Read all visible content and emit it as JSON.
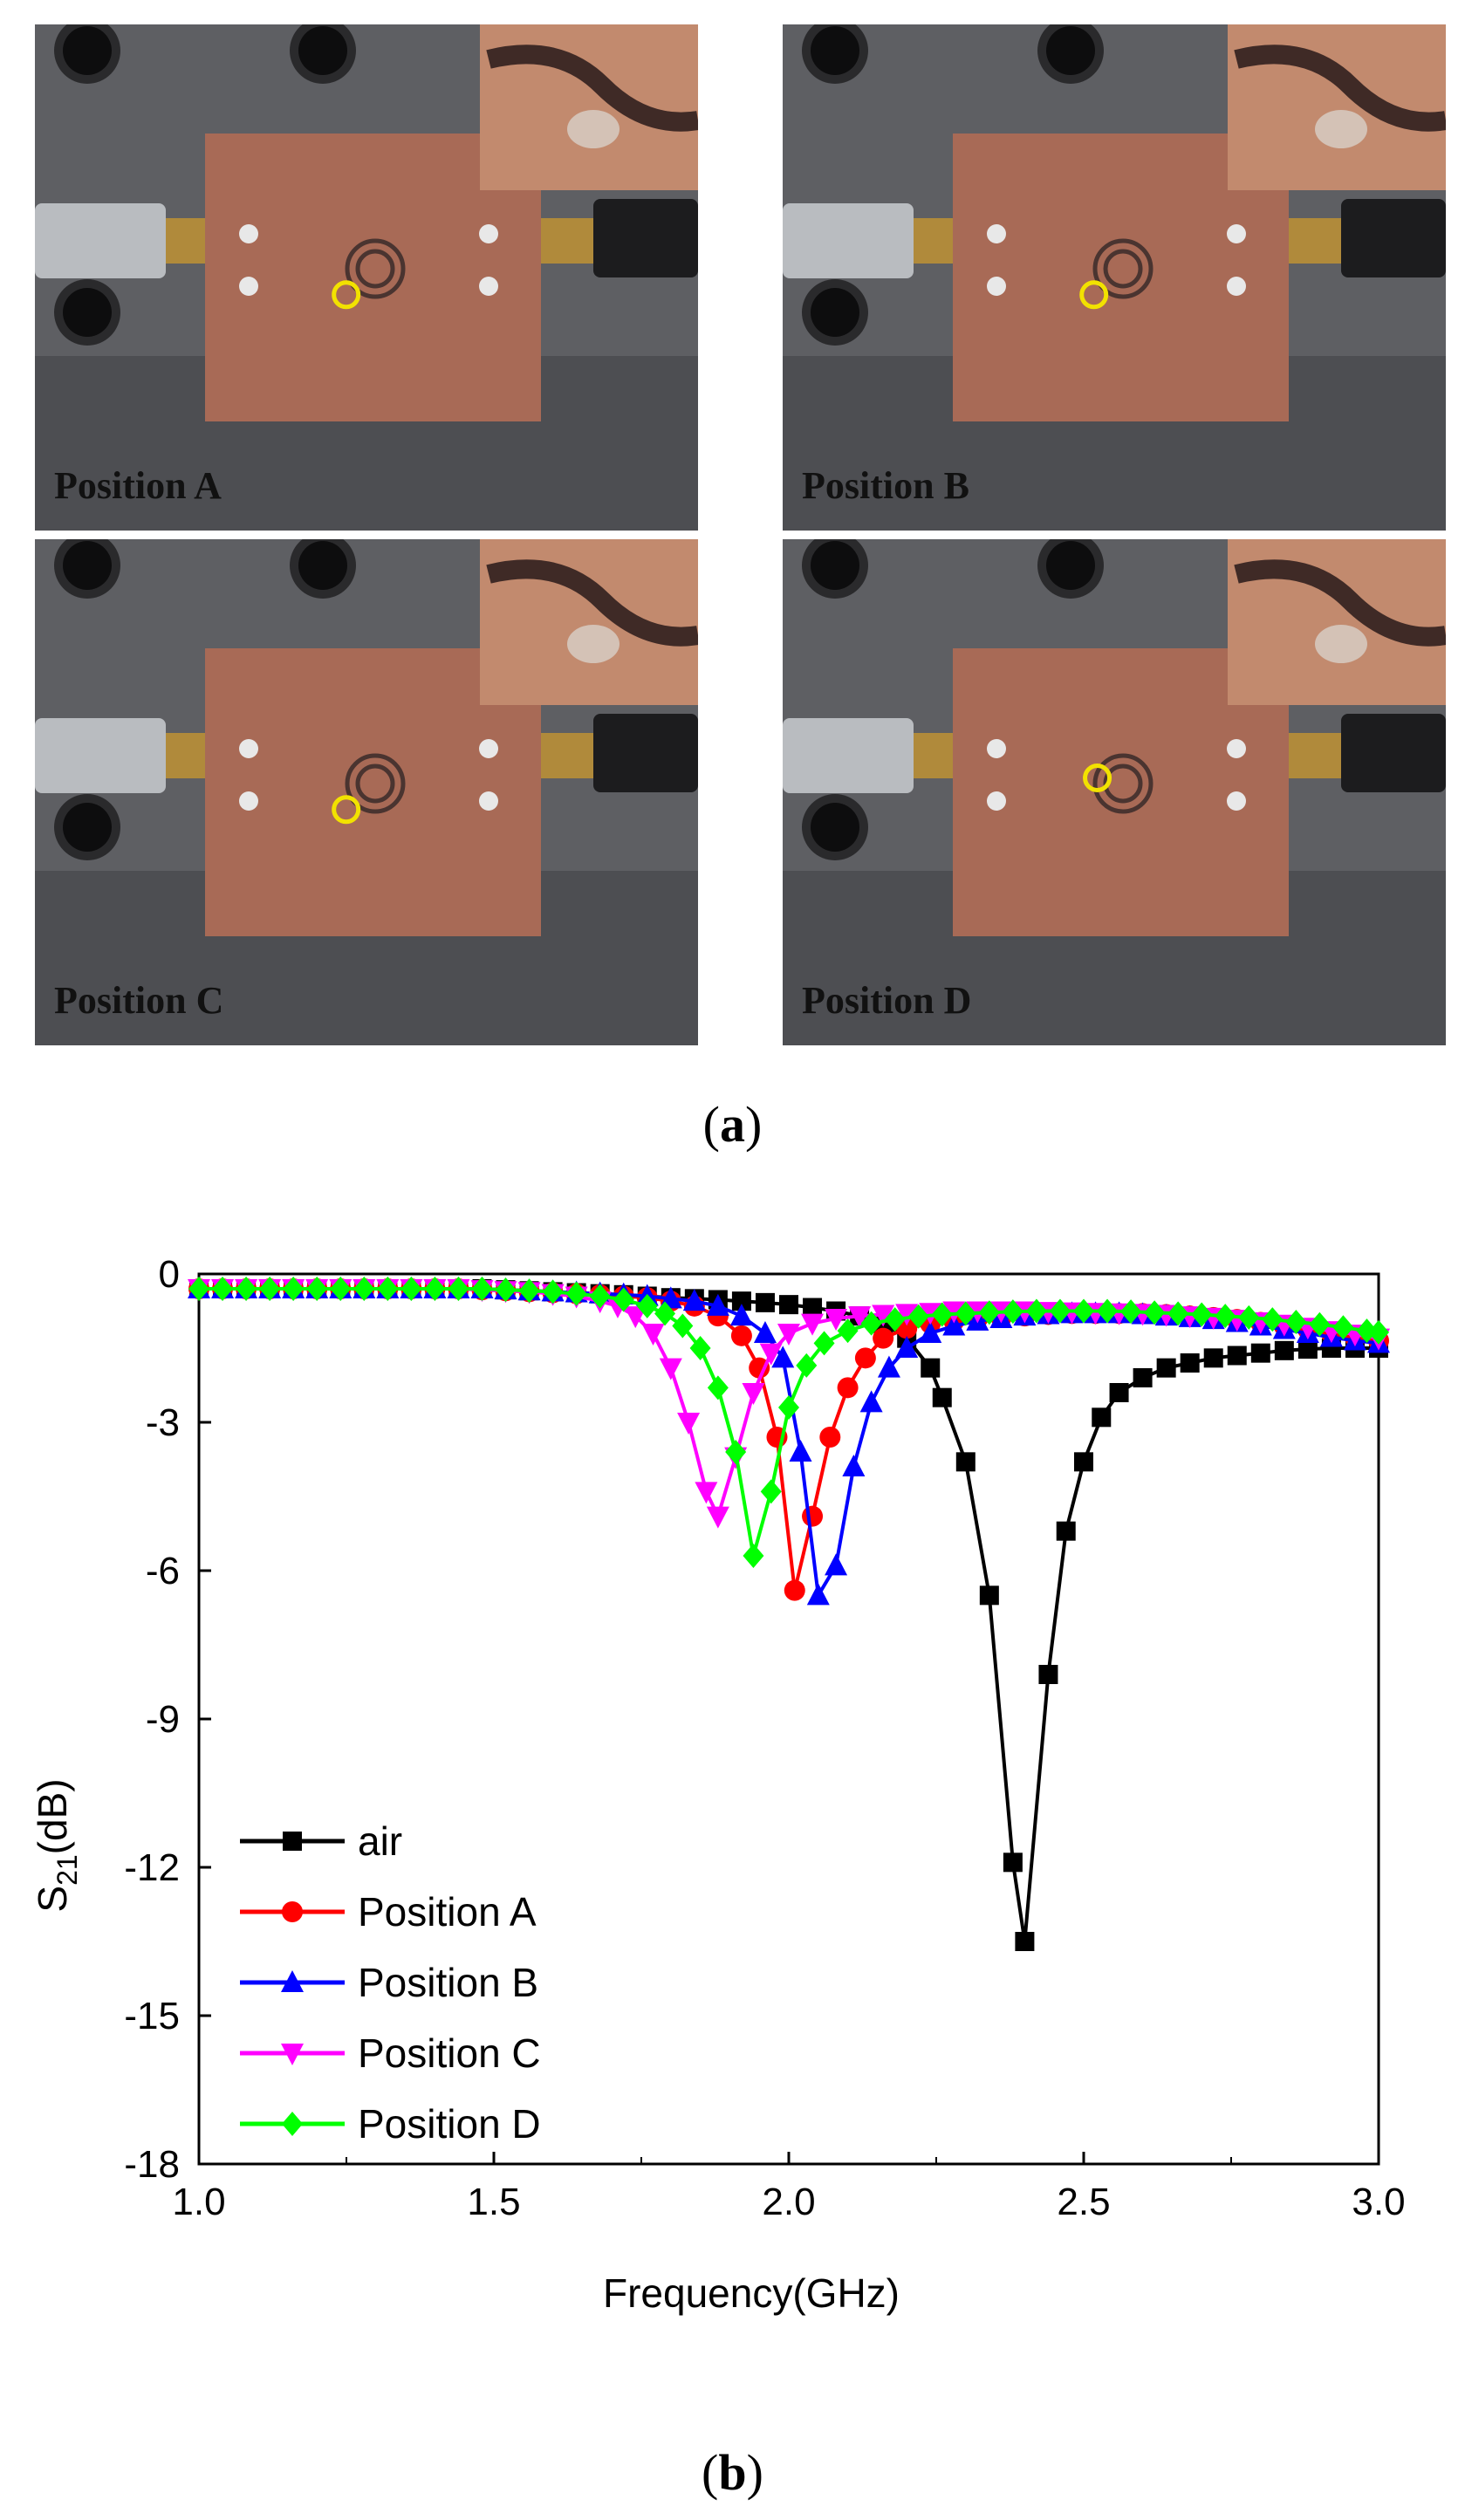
{
  "photos": [
    {
      "label": "Position A",
      "marker": [
        0.42,
        0.56
      ]
    },
    {
      "label": "Position B",
      "marker": [
        0.42,
        0.56
      ]
    },
    {
      "label": "Position C",
      "marker": [
        0.42,
        0.56
      ]
    },
    {
      "label": "Position D",
      "marker": [
        0.43,
        0.45
      ]
    }
  ],
  "captions": {
    "a": "a",
    "b": "b"
  },
  "chart_data": {
    "type": "line",
    "xlabel": "Frequency(GHz)",
    "ylabel_main": "S",
    "ylabel_sub": "21",
    "ylabel_unit": "(dB)",
    "xlim": [
      1.0,
      3.0
    ],
    "ylim": [
      -18,
      0
    ],
    "xticks": [
      "1.0",
      "1.5",
      "2.0",
      "2.5",
      "3.0"
    ],
    "yticks": [
      "0",
      "-3",
      "-6",
      "-9",
      "-12",
      "-15",
      "-18"
    ],
    "grid": false,
    "legend_position": "bottom-left",
    "series": [
      {
        "name": "air",
        "color": "#000000",
        "marker": "square",
        "x": [
          1.0,
          1.04,
          1.08,
          1.12,
          1.16,
          1.2,
          1.24,
          1.28,
          1.32,
          1.36,
          1.4,
          1.44,
          1.48,
          1.52,
          1.56,
          1.6,
          1.64,
          1.68,
          1.72,
          1.76,
          1.8,
          1.84,
          1.88,
          1.92,
          1.96,
          2.0,
          2.04,
          2.08,
          2.12,
          2.16,
          2.2,
          2.24,
          2.26,
          2.3,
          2.34,
          2.38,
          2.4,
          2.44,
          2.47,
          2.5,
          2.53,
          2.56,
          2.6,
          2.64,
          2.68,
          2.72,
          2.76,
          2.8,
          2.84,
          2.88,
          2.92,
          2.96,
          3.0
        ],
        "y": [
          -0.3,
          -0.3,
          -0.3,
          -0.3,
          -0.3,
          -0.3,
          -0.3,
          -0.3,
          -0.3,
          -0.3,
          -0.3,
          -0.3,
          -0.3,
          -0.32,
          -0.34,
          -0.36,
          -0.38,
          -0.4,
          -0.42,
          -0.45,
          -0.48,
          -0.5,
          -0.52,
          -0.55,
          -0.58,
          -0.62,
          -0.68,
          -0.75,
          -0.85,
          -1.0,
          -1.3,
          -1.9,
          -2.5,
          -3.8,
          -6.5,
          -11.9,
          -13.5,
          -8.1,
          -5.2,
          -3.8,
          -2.9,
          -2.4,
          -2.1,
          -1.9,
          -1.8,
          -1.7,
          -1.65,
          -1.6,
          -1.55,
          -1.52,
          -1.5,
          -1.5,
          -1.5
        ]
      },
      {
        "name": "Position A",
        "color": "#ff0000",
        "marker": "circle",
        "x": [
          1.0,
          1.04,
          1.08,
          1.12,
          1.16,
          1.2,
          1.24,
          1.28,
          1.32,
          1.36,
          1.4,
          1.44,
          1.48,
          1.52,
          1.56,
          1.6,
          1.64,
          1.68,
          1.72,
          1.76,
          1.8,
          1.84,
          1.88,
          1.92,
          1.95,
          1.98,
          2.01,
          2.04,
          2.07,
          2.1,
          2.13,
          2.16,
          2.2,
          2.24,
          2.28,
          2.32,
          2.36,
          2.4,
          2.44,
          2.48,
          2.52,
          2.56,
          2.6,
          2.64,
          2.68,
          2.72,
          2.76,
          2.8,
          2.84,
          2.88,
          2.92,
          2.96,
          3.0
        ],
        "y": [
          -0.3,
          -0.3,
          -0.3,
          -0.3,
          -0.3,
          -0.3,
          -0.3,
          -0.3,
          -0.3,
          -0.3,
          -0.3,
          -0.3,
          -0.32,
          -0.34,
          -0.36,
          -0.38,
          -0.4,
          -0.42,
          -0.45,
          -0.48,
          -0.55,
          -0.65,
          -0.85,
          -1.25,
          -1.9,
          -3.3,
          -6.4,
          -4.9,
          -3.3,
          -2.3,
          -1.7,
          -1.3,
          -1.1,
          -1.0,
          -0.95,
          -0.9,
          -0.88,
          -0.85,
          -0.82,
          -0.8,
          -0.8,
          -0.8,
          -0.8,
          -0.82,
          -0.85,
          -0.88,
          -0.92,
          -0.98,
          -1.05,
          -1.12,
          -1.2,
          -1.28,
          -1.35
        ]
      },
      {
        "name": "Position B",
        "color": "#0000ff",
        "marker": "triangle-up",
        "x": [
          1.0,
          1.04,
          1.08,
          1.12,
          1.16,
          1.2,
          1.24,
          1.28,
          1.32,
          1.36,
          1.4,
          1.44,
          1.48,
          1.52,
          1.56,
          1.6,
          1.64,
          1.68,
          1.72,
          1.76,
          1.8,
          1.84,
          1.88,
          1.92,
          1.96,
          1.99,
          2.02,
          2.05,
          2.08,
          2.11,
          2.14,
          2.17,
          2.2,
          2.24,
          2.28,
          2.32,
          2.36,
          2.4,
          2.44,
          2.48,
          2.52,
          2.56,
          2.6,
          2.64,
          2.68,
          2.72,
          2.76,
          2.8,
          2.84,
          2.88,
          2.92,
          2.96,
          3.0
        ],
        "y": [
          -0.3,
          -0.3,
          -0.3,
          -0.3,
          -0.3,
          -0.3,
          -0.3,
          -0.3,
          -0.3,
          -0.3,
          -0.3,
          -0.3,
          -0.3,
          -0.32,
          -0.34,
          -0.36,
          -0.38,
          -0.4,
          -0.42,
          -0.45,
          -0.5,
          -0.55,
          -0.65,
          -0.85,
          -1.2,
          -1.7,
          -3.6,
          -6.5,
          -5.9,
          -3.9,
          -2.6,
          -1.9,
          -1.5,
          -1.2,
          -1.05,
          -0.95,
          -0.9,
          -0.85,
          -0.82,
          -0.8,
          -0.8,
          -0.8,
          -0.82,
          -0.85,
          -0.88,
          -0.92,
          -0.98,
          -1.05,
          -1.12,
          -1.2,
          -1.28,
          -1.35,
          -1.4
        ]
      },
      {
        "name": "Position C",
        "color": "#ff00ff",
        "marker": "triangle-down",
        "x": [
          1.0,
          1.04,
          1.08,
          1.12,
          1.16,
          1.2,
          1.24,
          1.28,
          1.32,
          1.36,
          1.4,
          1.44,
          1.48,
          1.52,
          1.56,
          1.6,
          1.64,
          1.68,
          1.71,
          1.74,
          1.77,
          1.8,
          1.83,
          1.86,
          1.88,
          1.91,
          1.94,
          1.97,
          2.0,
          2.04,
          2.08,
          2.12,
          2.16,
          2.2,
          2.24,
          2.28,
          2.32,
          2.36,
          2.4,
          2.44,
          2.48,
          2.52,
          2.56,
          2.6,
          2.64,
          2.68,
          2.72,
          2.76,
          2.8,
          2.84,
          2.88,
          2.92,
          2.96,
          3.0
        ],
        "y": [
          -0.3,
          -0.3,
          -0.3,
          -0.3,
          -0.3,
          -0.3,
          -0.3,
          -0.3,
          -0.3,
          -0.3,
          -0.3,
          -0.3,
          -0.32,
          -0.34,
          -0.36,
          -0.4,
          -0.45,
          -0.55,
          -0.65,
          -0.85,
          -1.2,
          -1.9,
          -3.0,
          -4.4,
          -4.9,
          -3.7,
          -2.4,
          -1.6,
          -1.2,
          -1.0,
          -0.9,
          -0.85,
          -0.82,
          -0.8,
          -0.78,
          -0.75,
          -0.75,
          -0.75,
          -0.75,
          -0.76,
          -0.77,
          -0.78,
          -0.79,
          -0.8,
          -0.82,
          -0.85,
          -0.88,
          -0.92,
          -0.97,
          -1.02,
          -1.08,
          -1.15,
          -1.22,
          -1.3
        ]
      },
      {
        "name": "Position D",
        "color": "#00ff00",
        "marker": "diamond",
        "x": [
          1.0,
          1.04,
          1.08,
          1.12,
          1.16,
          1.2,
          1.24,
          1.28,
          1.32,
          1.36,
          1.4,
          1.44,
          1.48,
          1.52,
          1.56,
          1.6,
          1.64,
          1.68,
          1.72,
          1.76,
          1.79,
          1.82,
          1.85,
          1.88,
          1.91,
          1.94,
          1.97,
          2.0,
          2.03,
          2.06,
          2.1,
          2.14,
          2.18,
          2.22,
          2.26,
          2.3,
          2.34,
          2.38,
          2.42,
          2.46,
          2.5,
          2.54,
          2.58,
          2.62,
          2.66,
          2.7,
          2.74,
          2.78,
          2.82,
          2.86,
          2.9,
          2.94,
          2.98,
          3.0
        ],
        "y": [
          -0.3,
          -0.3,
          -0.3,
          -0.3,
          -0.3,
          -0.3,
          -0.3,
          -0.3,
          -0.3,
          -0.3,
          -0.3,
          -0.3,
          -0.3,
          -0.32,
          -0.34,
          -0.36,
          -0.4,
          -0.45,
          -0.52,
          -0.65,
          -0.8,
          -1.05,
          -1.5,
          -2.3,
          -3.6,
          -5.7,
          -4.4,
          -2.7,
          -1.85,
          -1.4,
          -1.15,
          -1.0,
          -0.92,
          -0.86,
          -0.82,
          -0.8,
          -0.78,
          -0.76,
          -0.75,
          -0.75,
          -0.75,
          -0.75,
          -0.76,
          -0.78,
          -0.8,
          -0.82,
          -0.85,
          -0.88,
          -0.92,
          -0.97,
          -1.02,
          -1.08,
          -1.15,
          -1.18
        ]
      }
    ]
  }
}
